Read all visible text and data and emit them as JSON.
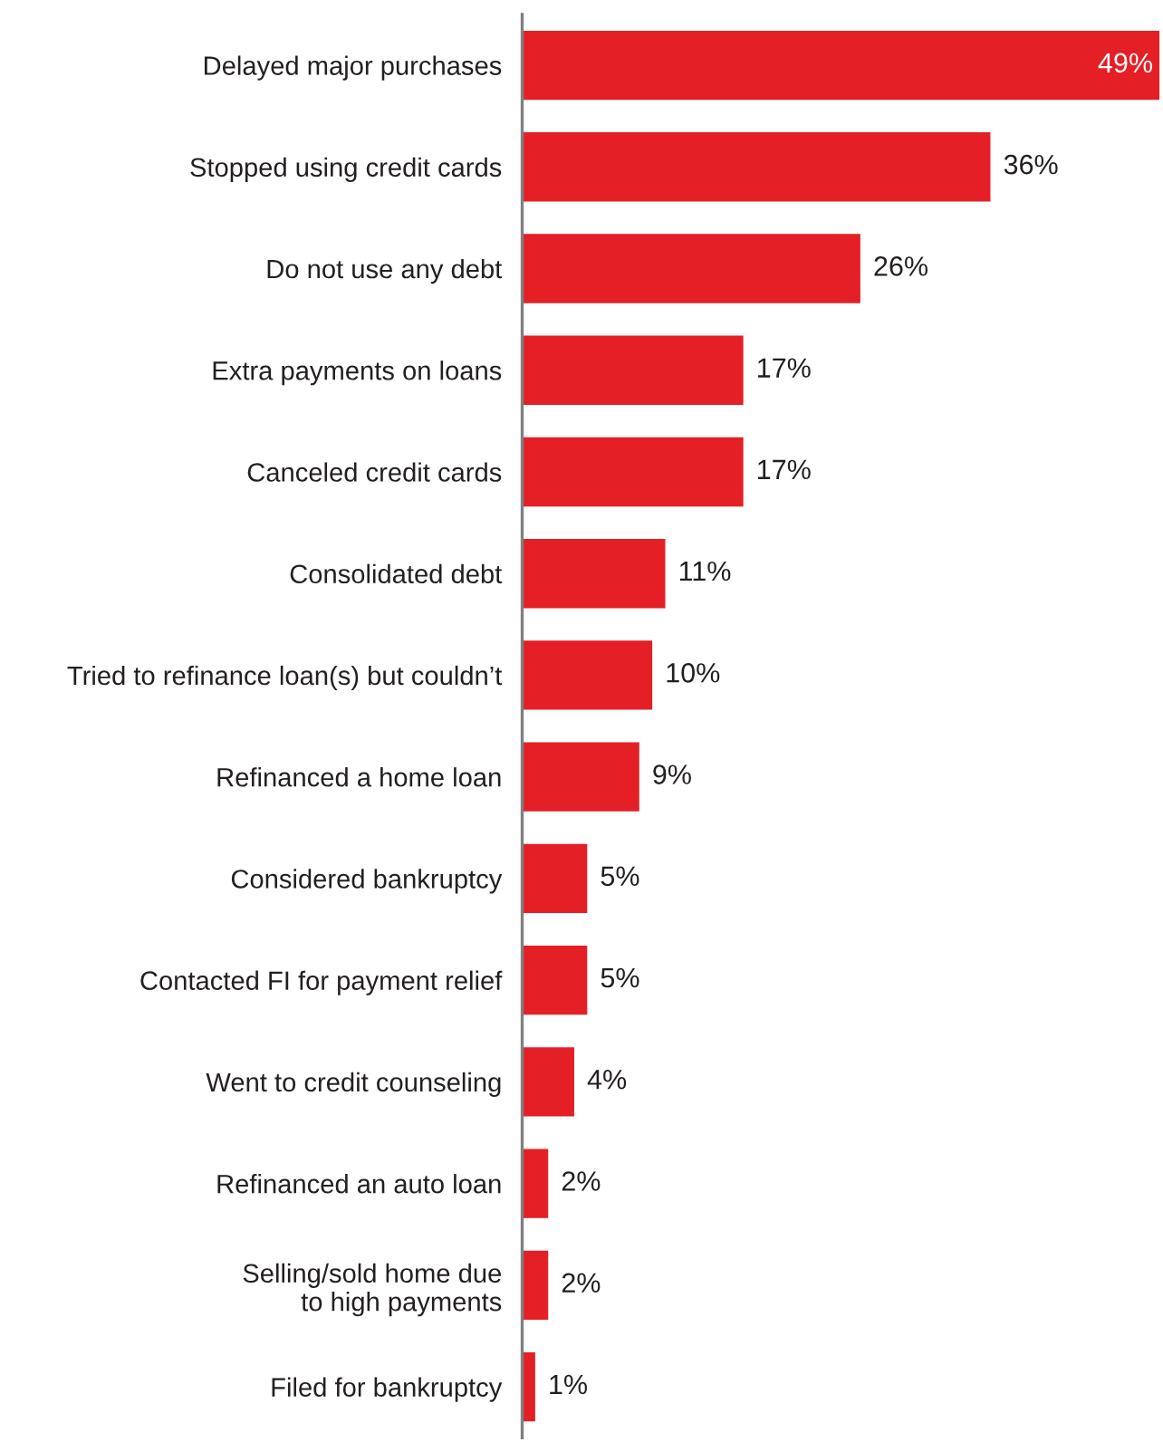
{
  "chart_data": {
    "type": "bar",
    "orientation": "horizontal",
    "categories": [
      "Delayed major purchases",
      "Stopped using credit cards",
      "Do not use any debt",
      "Extra payments on loans",
      "Canceled credit cards",
      "Consolidated debt",
      "Tried to refinance loan(s) but couldn’t",
      "Refinanced a home loan",
      "Considered bankruptcy",
      "Contacted FI for payment relief",
      "Went to credit counseling",
      "Refinanced an auto loan",
      "Selling/sold home due\nto high payments",
      "Filed for bankruptcy"
    ],
    "values": [
      49,
      36,
      26,
      17,
      17,
      11,
      10,
      9,
      5,
      5,
      4,
      2,
      2,
      1
    ],
    "value_labels": [
      "49%",
      "36%",
      "26%",
      "17%",
      "17%",
      "11%",
      "10%",
      "9%",
      "5%",
      "5%",
      "4%",
      "2%",
      "2%",
      "1%"
    ],
    "color": "#e41f26"
  }
}
